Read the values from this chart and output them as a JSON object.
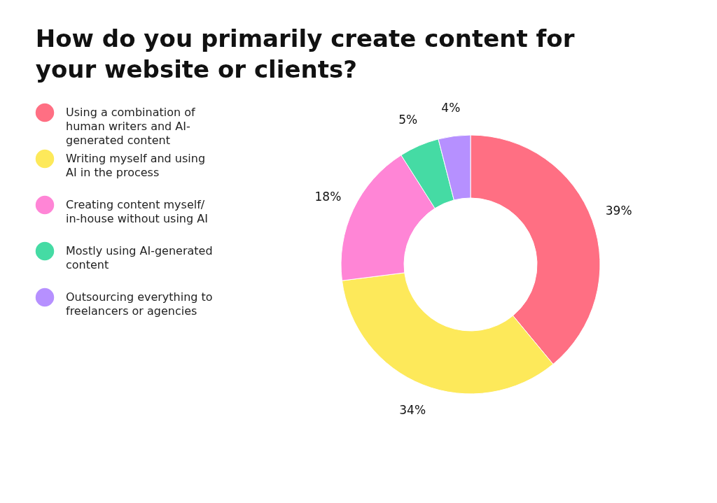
{
  "chart_data": {
    "type": "donut",
    "title": "How do you primarily create content for your website or clients?",
    "categories": [
      "Using a combination of human writers and AI-generated content",
      "Writing myself and using AI in the process",
      "Creating content myself/ in-house without using AI",
      "Mostly using AI-generated content",
      "Outsourcing everything to freelancers or agencies"
    ],
    "values": [
      39,
      34,
      18,
      5,
      4
    ],
    "value_labels": [
      "39%",
      "34%",
      "18%",
      "5%",
      "4%"
    ],
    "colors": [
      "#ff6f83",
      "#fde95a",
      "#ff85d6",
      "#45dba4",
      "#b690ff"
    ],
    "legend": "left"
  }
}
